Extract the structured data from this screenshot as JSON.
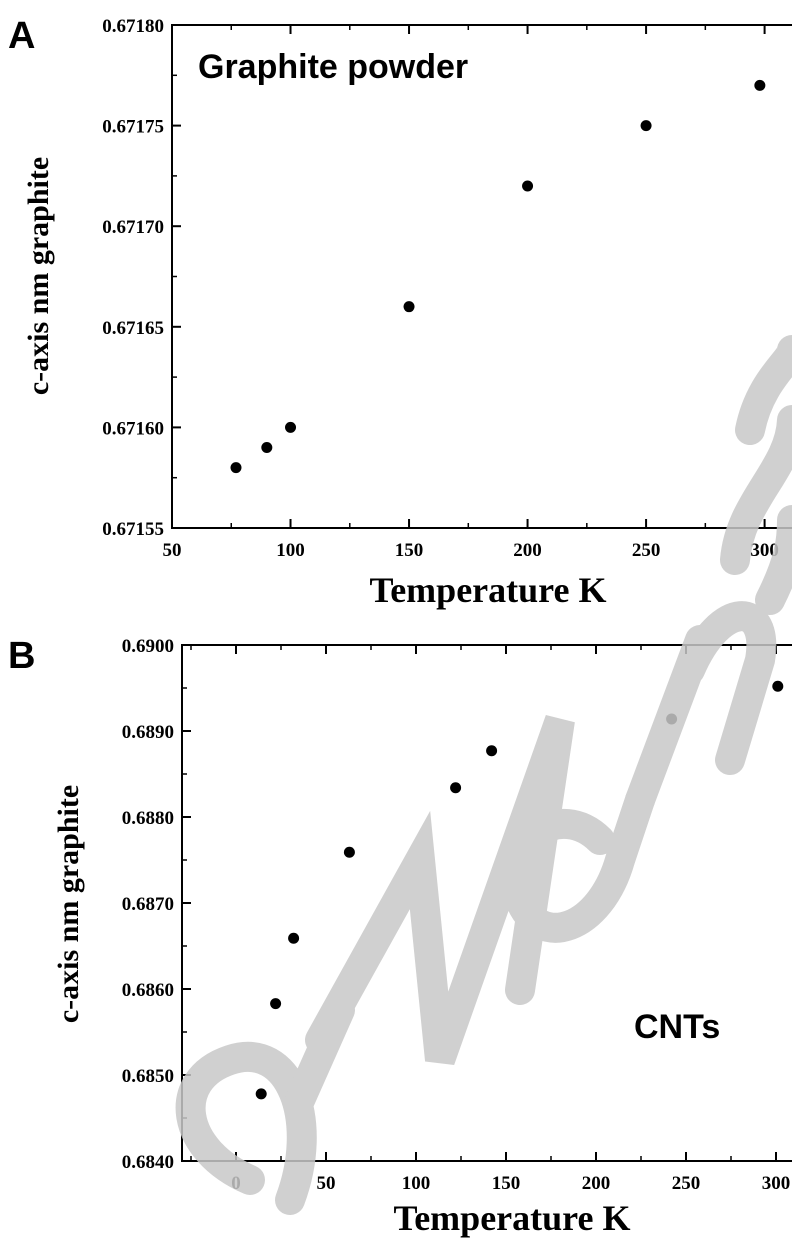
{
  "panels": [
    {
      "letter": "A",
      "label": "Graphite powder"
    },
    {
      "letter": "B",
      "label": "CNTs"
    }
  ],
  "colors": {
    "marker": "#000000",
    "watermark": "#c8c8c8"
  },
  "chart_data": [
    {
      "type": "scatter",
      "title": "",
      "annotation": "Graphite powder",
      "xlabel": "Temperature K",
      "ylabel": "c-axis nm graphite",
      "xlim": [
        50,
        320
      ],
      "ylim": [
        0.67155,
        0.6718
      ],
      "xticks": [
        50,
        100,
        150,
        200,
        250,
        300
      ],
      "xtick_labels": [
        "50",
        "100",
        "150",
        "200",
        "250",
        "300"
      ],
      "yticks": [
        0.67155,
        0.6716,
        0.67165,
        0.6717,
        0.67175,
        0.6718
      ],
      "ytick_labels": [
        "0.67155",
        "0.67160",
        "0.67165",
        "0.67170",
        "0.67175",
        "0.67180"
      ],
      "grid": false,
      "series": [
        {
          "x": [
            77,
            90,
            100,
            150,
            200,
            250,
            298
          ],
          "y": [
            0.67158,
            0.67159,
            0.6716,
            0.67166,
            0.67172,
            0.67175,
            0.67177
          ]
        }
      ]
    },
    {
      "type": "scatter",
      "title": "",
      "annotation": "CNTs",
      "xlabel": "Temperature K",
      "ylabel": "c-axis nm graphite",
      "xlim": [
        -30,
        320
      ],
      "ylim": [
        0.684,
        0.69
      ],
      "xticks": [
        0,
        50,
        100,
        150,
        200,
        250,
        300
      ],
      "xtick_labels": [
        "0",
        "50",
        "100",
        "150",
        "200",
        "250",
        "300"
      ],
      "yticks": [
        0.684,
        0.685,
        0.686,
        0.687,
        0.688,
        0.689,
        0.69
      ],
      "ytick_labels": [
        "0.6840",
        "0.6850",
        "0.6860",
        "0.6870",
        "0.6880",
        "0.6890",
        "0.6900"
      ],
      "grid": false,
      "series": [
        {
          "x": [
            14,
            22,
            32,
            63,
            122,
            142,
            242,
            301
          ],
          "y": [
            0.68478,
            0.68583,
            0.68659,
            0.68759,
            0.68834,
            0.68877,
            0.68914,
            0.68952
          ]
        }
      ]
    }
  ]
}
